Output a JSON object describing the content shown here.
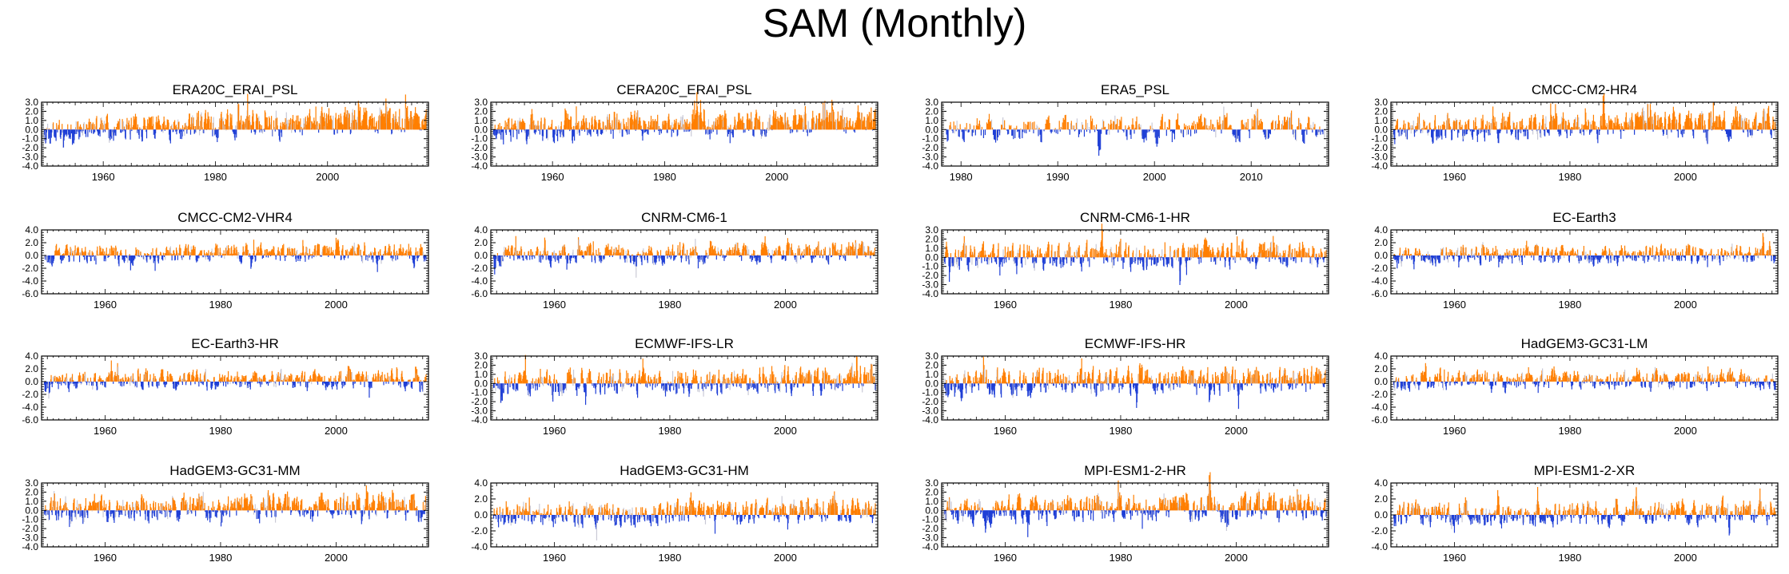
{
  "figure_title": "SAM (Monthly)",
  "colors": {
    "positive": "#ff7f00",
    "negative": "#1f3fd6",
    "frame": "#000000"
  },
  "chart_data": [
    {
      "type": "bar",
      "title": "ERA20C_ERAI_PSL",
      "xlim": [
        1949,
        2018
      ],
      "xticks": [
        "1960",
        "1980",
        "2000"
      ],
      "ylim": [
        -4.0,
        3.0
      ],
      "yticks": [
        "3.0",
        "2.0",
        "1.0",
        "0.0",
        "-1.0",
        "-2.0",
        "-3.0",
        "-4.0"
      ],
      "seed": 11,
      "positive_trend": 0.012
    },
    {
      "type": "bar",
      "title": "CERA20C_ERAI_PSL",
      "xlim": [
        1949,
        2018
      ],
      "xticks": [
        "1960",
        "1980",
        "2000"
      ],
      "ylim": [
        -4.0,
        3.0
      ],
      "yticks": [
        "3.0",
        "2.0",
        "1.0",
        "0.0",
        "-1.0",
        "-2.0",
        "-3.0",
        "-4.0"
      ],
      "seed": 23,
      "positive_trend": 0.012
    },
    {
      "type": "bar",
      "title": "ERA5_PSL",
      "xlim": [
        1978,
        2018
      ],
      "xticks": [
        "1980",
        "1990",
        "2000",
        "2010"
      ],
      "ylim": [
        -4.0,
        3.0
      ],
      "yticks": [
        "3.0",
        "2.0",
        "1.0",
        "0.0",
        "-1.0",
        "-2.0",
        "-3.0",
        "-4.0"
      ],
      "seed": 37,
      "positive_trend": 0.004
    },
    {
      "type": "bar",
      "title": "CMCC-CM2-HR4",
      "xlim": [
        1949,
        2016
      ],
      "xticks": [
        "1960",
        "1980",
        "2000"
      ],
      "ylim": [
        -4.0,
        3.0
      ],
      "yticks": [
        "3.0",
        "2.0",
        "1.0",
        "0.0",
        "-1.0",
        "-2.0",
        "-3.0",
        "-4.0"
      ],
      "seed": 41,
      "positive_trend": 0.008
    },
    {
      "type": "bar",
      "title": "CMCC-CM2-VHR4",
      "xlim": [
        1949,
        2016
      ],
      "xticks": [
        "1960",
        "1980",
        "2000"
      ],
      "ylim": [
        -6.0,
        4.0
      ],
      "yticks": [
        "4.0",
        "2.0",
        "0.0",
        "-2.0",
        "-4.0",
        "-6.0"
      ],
      "seed": 53,
      "positive_trend": 0.006
    },
    {
      "type": "bar",
      "title": "CNRM-CM6-1",
      "xlim": [
        1949,
        2016
      ],
      "xticks": [
        "1960",
        "1980",
        "2000"
      ],
      "ylim": [
        -6.0,
        4.0
      ],
      "yticks": [
        "4.0",
        "2.0",
        "0.0",
        "-2.0",
        "-4.0",
        "-6.0"
      ],
      "seed": 67,
      "positive_trend": 0.006
    },
    {
      "type": "bar",
      "title": "CNRM-CM6-1-HR",
      "xlim": [
        1949,
        2016
      ],
      "xticks": [
        "1960",
        "1980",
        "2000"
      ],
      "ylim": [
        -4.0,
        3.0
      ],
      "yticks": [
        "3.0",
        "2.0",
        "1.0",
        "0.0",
        "-1.0",
        "-2.0",
        "-3.0",
        "-4.0"
      ],
      "seed": 71,
      "positive_trend": 0.004
    },
    {
      "type": "bar",
      "title": "EC-Earth3",
      "xlim": [
        1949,
        2016
      ],
      "xticks": [
        "1960",
        "1980",
        "2000"
      ],
      "ylim": [
        -6.0,
        4.0
      ],
      "yticks": [
        "4.0",
        "2.0",
        "0.0",
        "-2.0",
        "-4.0",
        "-6.0"
      ],
      "seed": 83,
      "positive_trend": 0.004
    },
    {
      "type": "bar",
      "title": "EC-Earth3-HR",
      "xlim": [
        1949,
        2016
      ],
      "xticks": [
        "1960",
        "1980",
        "2000"
      ],
      "ylim": [
        -6.0,
        4.0
      ],
      "yticks": [
        "4.0",
        "2.0",
        "0.0",
        "-2.0",
        "-4.0",
        "-6.0"
      ],
      "seed": 97,
      "positive_trend": 0.005
    },
    {
      "type": "bar",
      "title": "ECMWF-IFS-LR",
      "xlim": [
        1949,
        2016
      ],
      "xticks": [
        "1960",
        "1980",
        "2000"
      ],
      "ylim": [
        -4.0,
        3.0
      ],
      "yticks": [
        "3.0",
        "2.0",
        "1.0",
        "0.0",
        "-1.0",
        "-2.0",
        "-3.0",
        "-4.0"
      ],
      "seed": 101,
      "positive_trend": 0.005
    },
    {
      "type": "bar",
      "title": "ECMWF-IFS-HR",
      "xlim": [
        1949,
        2016
      ],
      "xticks": [
        "1960",
        "1980",
        "2000"
      ],
      "ylim": [
        -4.0,
        3.0
      ],
      "yticks": [
        "3.0",
        "2.0",
        "1.0",
        "0.0",
        "-1.0",
        "-2.0",
        "-3.0",
        "-4.0"
      ],
      "seed": 113,
      "positive_trend": 0.005
    },
    {
      "type": "bar",
      "title": "HadGEM3-GC31-LM",
      "xlim": [
        1949,
        2016
      ],
      "xticks": [
        "1960",
        "1980",
        "2000"
      ],
      "ylim": [
        -6.0,
        4.0
      ],
      "yticks": [
        "4.0",
        "2.0",
        "0.0",
        "-2.0",
        "-4.0",
        "-6.0"
      ],
      "seed": 127,
      "positive_trend": 0.004
    },
    {
      "type": "bar",
      "title": "HadGEM3-GC31-MM",
      "xlim": [
        1949,
        2016
      ],
      "xticks": [
        "1960",
        "1980",
        "2000"
      ],
      "ylim": [
        -4.0,
        3.0
      ],
      "yticks": [
        "3.0",
        "2.0",
        "1.0",
        "0.0",
        "-1.0",
        "-2.0",
        "-3.0",
        "-4.0"
      ],
      "seed": 131,
      "positive_trend": 0.005
    },
    {
      "type": "bar",
      "title": "HadGEM3-GC31-HM",
      "xlim": [
        1949,
        2016
      ],
      "xticks": [
        "1960",
        "1980",
        "2000"
      ],
      "ylim": [
        -4.0,
        4.0
      ],
      "yticks": [
        "4.0",
        "2.0",
        "0.0",
        "-2.0",
        "-4.0"
      ],
      "seed": 139,
      "positive_trend": 0.005
    },
    {
      "type": "bar",
      "title": "MPI-ESM1-2-HR",
      "xlim": [
        1949,
        2016
      ],
      "xticks": [
        "1960",
        "1980",
        "2000"
      ],
      "ylim": [
        -4.0,
        3.0
      ],
      "yticks": [
        "3.0",
        "2.0",
        "1.0",
        "0.0",
        "-1.0",
        "-2.0",
        "-3.0",
        "-4.0"
      ],
      "seed": 149,
      "positive_trend": 0.005
    },
    {
      "type": "bar",
      "title": "MPI-ESM1-2-XR",
      "xlim": [
        1949,
        2016
      ],
      "xticks": [
        "1960",
        "1980",
        "2000"
      ],
      "ylim": [
        -4.0,
        4.0
      ],
      "yticks": [
        "4.0",
        "2.0",
        "0.0",
        "-2.0",
        "-4.0"
      ],
      "seed": 151,
      "positive_trend": 0.005
    }
  ]
}
